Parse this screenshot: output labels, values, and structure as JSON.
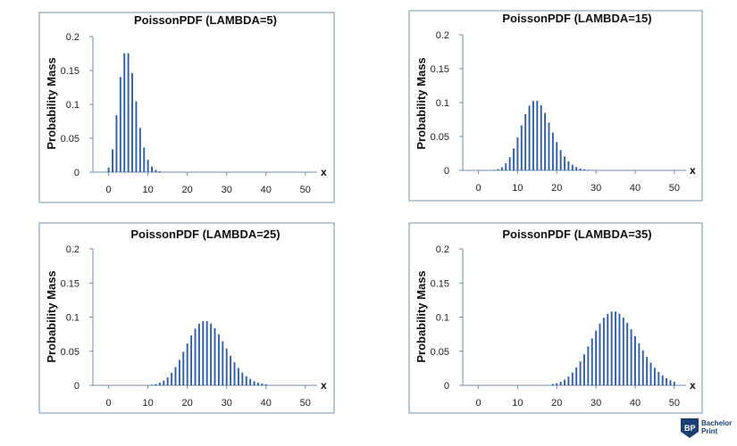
{
  "charts": [
    {
      "title": "PoissonPDF (LAMBDA=5)",
      "lambda": 5
    },
    {
      "title": "PoissonPDF (LAMBDA=15)",
      "lambda": 15
    },
    {
      "title": "PoissonPDF (LAMBDA=25)",
      "lambda": 25
    },
    {
      "title": "PoissonPDF (LAMBDA=35)",
      "lambda": 35
    }
  ],
  "ylabel": "Probability Mass",
  "xlabel": "x",
  "y_ticks": [
    "0",
    "0.05",
    "0.1",
    "0.15",
    "0.2"
  ],
  "x_ticks": [
    "0",
    "10",
    "20",
    "30",
    "40",
    "50"
  ],
  "brand": {
    "line1": "Bachelor",
    "line2": "Print",
    "color": "#1c3f73"
  },
  "bar_color": "#2f5fa8",
  "chart_data": [
    {
      "type": "bar",
      "title": "PoissonPDF (LAMBDA=5)",
      "xlabel": "x",
      "ylabel": "Probability Mass",
      "xlim": [
        -4,
        53
      ],
      "ylim": [
        0,
        0.2
      ],
      "x": [
        0,
        1,
        2,
        3,
        4,
        5,
        6,
        7,
        8,
        9,
        10,
        11,
        12,
        13
      ],
      "values": [
        0.0067,
        0.0337,
        0.0842,
        0.1404,
        0.1755,
        0.1755,
        0.1462,
        0.1044,
        0.0653,
        0.0363,
        0.0181,
        0.0082,
        0.0034,
        0.0013
      ]
    },
    {
      "type": "bar",
      "title": "PoissonPDF (LAMBDA=15)",
      "xlabel": "x",
      "ylabel": "Probability Mass",
      "xlim": [
        -4,
        53
      ],
      "ylim": [
        0,
        0.2
      ],
      "x": [
        4,
        5,
        6,
        7,
        8,
        9,
        10,
        11,
        12,
        13,
        14,
        15,
        16,
        17,
        18,
        19,
        20,
        21,
        22,
        23,
        24,
        25,
        26,
        27,
        28
      ],
      "values": [
        0.0006,
        0.0019,
        0.0048,
        0.0104,
        0.0194,
        0.0324,
        0.0486,
        0.0663,
        0.0829,
        0.0956,
        0.1024,
        0.1024,
        0.096,
        0.0847,
        0.0706,
        0.0557,
        0.0418,
        0.0299,
        0.0204,
        0.0133,
        0.0083,
        0.005,
        0.0029,
        0.0016,
        0.0009
      ]
    },
    {
      "type": "bar",
      "title": "PoissonPDF (LAMBDA=25)",
      "xlabel": "x",
      "ylabel": "Probability Mass",
      "xlim": [
        -4,
        53
      ],
      "ylim": [
        0,
        0.2
      ],
      "x": [
        11,
        12,
        13,
        14,
        15,
        16,
        17,
        18,
        19,
        20,
        21,
        22,
        23,
        24,
        25,
        26,
        27,
        28,
        29,
        30,
        31,
        32,
        33,
        34,
        35,
        36,
        37,
        38,
        39,
        40
      ],
      "values": [
        0.001,
        0.002,
        0.0039,
        0.007,
        0.0117,
        0.0183,
        0.0269,
        0.0374,
        0.0492,
        0.0614,
        0.0731,
        0.0831,
        0.0903,
        0.0941,
        0.0941,
        0.0905,
        0.0838,
        0.0748,
        0.0645,
        0.0538,
        0.0433,
        0.0338,
        0.0256,
        0.0188,
        0.0134,
        0.0093,
        0.0063,
        0.0041,
        0.0026,
        0.0016
      ]
    },
    {
      "type": "bar",
      "title": "PoissonPDF (LAMBDA=35)",
      "xlabel": "x",
      "ylabel": "Probability Mass",
      "xlim": [
        -4,
        53
      ],
      "ylim": [
        0,
        0.2
      ],
      "x": [
        19,
        20,
        21,
        22,
        23,
        24,
        25,
        26,
        27,
        28,
        29,
        30,
        31,
        32,
        33,
        34,
        35,
        36,
        37,
        38,
        39,
        40,
        41,
        42,
        43,
        44,
        45,
        46,
        47,
        48,
        49,
        50
      ],
      "values": [
        0.0019,
        0.0032,
        0.0053,
        0.0084,
        0.0128,
        0.0186,
        0.0261,
        0.0351,
        0.0455,
        0.0569,
        0.0687,
        0.0801,
        0.0905,
        0.099,
        0.105,
        0.1081,
        0.1081,
        0.1051,
        0.0994,
        0.0916,
        0.0822,
        0.0719,
        0.0614,
        0.0512,
        0.0417,
        0.0331,
        0.0258,
        0.0196,
        0.0146,
        0.0106,
        0.0076,
        0.0053
      ]
    }
  ]
}
